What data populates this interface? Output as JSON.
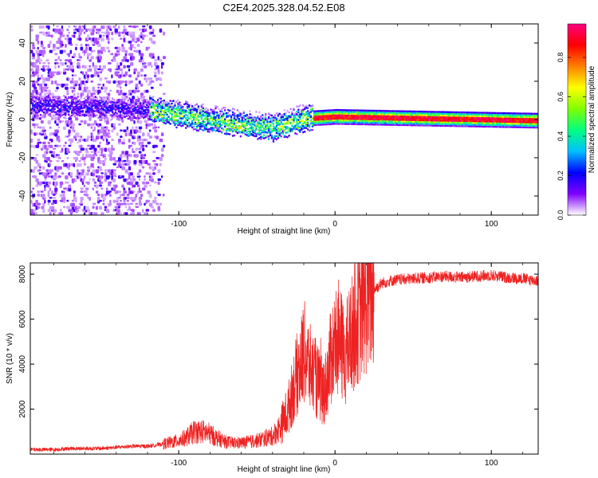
{
  "figure_title": "C2E4.2025.328.04.52.E08",
  "chart_data": [
    {
      "type": "heatmap",
      "title": "C2E4.2025.328.04.52.E08",
      "xlabel": "Height of straight line (km)",
      "ylabel": "Frequency (Hz)",
      "xlim": [
        -195,
        130
      ],
      "ylim": [
        -50,
        50
      ],
      "xticks": [
        -100,
        0,
        100
      ],
      "yticks": [
        -40,
        -20,
        0,
        20,
        40
      ],
      "colorbar": {
        "label": "Normalized spectral amplitude",
        "range": [
          0,
          0.97
        ],
        "ticks": [
          0,
          0.2,
          0.4,
          0.6,
          0.8
        ],
        "tick_labels": [
          "0.0",
          "0.2",
          "0.4",
          "0.6",
          "0.8"
        ],
        "colormap": [
          "#ffffff",
          "#8000ff",
          "#0000ff",
          "#00c0ff",
          "#00ff80",
          "#80ff00",
          "#ffff00",
          "#ff8000",
          "#ff0000",
          "#ff0080"
        ]
      },
      "features": [
        {
          "name": "scattered noise",
          "x_range": [
            -195,
            -110
          ],
          "freq_range": [
            -50,
            50
          ],
          "amplitude": 0.1
        },
        {
          "name": "signal band",
          "x_range": [
            -195,
            130
          ],
          "center_freq_at": [
            [
              -195,
              8
            ],
            [
              -120,
              6
            ],
            [
              -80,
              0
            ],
            [
              -40,
              -4
            ],
            [
              -20,
              1
            ],
            [
              0,
              2
            ],
            [
              130,
              0
            ]
          ],
          "peak_amplitude": 0.97
        }
      ]
    },
    {
      "type": "line",
      "xlabel": "Height of straight line (km)",
      "ylabel": "SNR (10 * v/v)",
      "xlim": [
        -195,
        130
      ],
      "ylim": [
        0,
        8500
      ],
      "xticks": [
        -100,
        0,
        100
      ],
      "yticks": [
        2000,
        4000,
        6000,
        8000
      ],
      "color": "#ee2222",
      "series": [
        {
          "name": "SNR",
          "x": [
            -195,
            -180,
            -170,
            -160,
            -150,
            -140,
            -130,
            -120,
            -115,
            -110,
            -100,
            -95,
            -90,
            -85,
            -80,
            -75,
            -70,
            -65,
            -60,
            -55,
            -50,
            -45,
            -40,
            -35,
            -30,
            -25,
            -22,
            -20,
            -18,
            -16,
            -14,
            -12,
            -10,
            -8,
            -6,
            -4,
            -2,
            0,
            2,
            4,
            6,
            8,
            10,
            12,
            14,
            16,
            18,
            20,
            25,
            30,
            35,
            40,
            50,
            60,
            70,
            80,
            90,
            100,
            110,
            120,
            130
          ],
          "values": [
            200,
            200,
            250,
            250,
            250,
            300,
            350,
            350,
            400,
            450,
            600,
            750,
            1000,
            1000,
            900,
            700,
            550,
            500,
            500,
            550,
            600,
            700,
            800,
            1200,
            2000,
            3400,
            4000,
            4600,
            4200,
            3800,
            3600,
            3300,
            3000,
            2800,
            3000,
            3800,
            4500,
            5000,
            5200,
            4800,
            4300,
            4700,
            5200,
            5600,
            6000,
            6200,
            6500,
            6800,
            7300,
            7600,
            7700,
            7750,
            7800,
            7850,
            7900,
            7850,
            7900,
            7950,
            7850,
            7800,
            7700
          ]
        }
      ]
    }
  ]
}
